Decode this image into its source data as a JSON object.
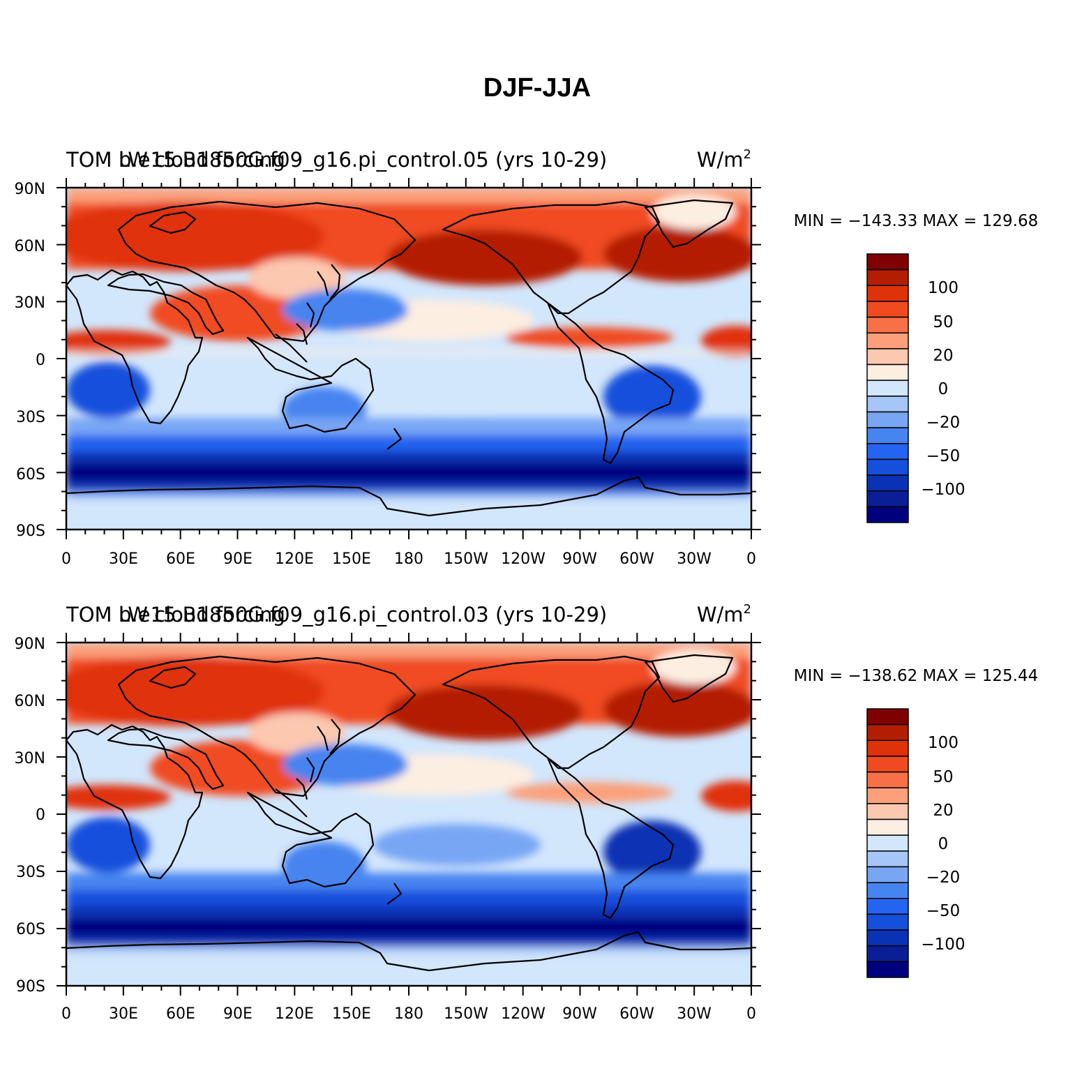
{
  "figure": {
    "title": "DJF-JJA",
    "colors": {
      "palette": [
        "#00007f",
        "#0a1e96",
        "#0a32b4",
        "#1450dc",
        "#2464f0",
        "#4684f0",
        "#78a6f5",
        "#a6c6f8",
        "#d2e6fc",
        "#fdeee2",
        "#fcc8b0",
        "#fba07a",
        "#f87048",
        "#f04b20",
        "#e03208",
        "#b41e00",
        "#7f0000"
      ]
    },
    "panels": [
      {
        "left_title": "TOM LW cloud forcing",
        "center_title": "b.e15.B1850G.f09_g16.pi_control.05 (yrs 10-29)",
        "units_base": "W/m",
        "units_exp": "2",
        "stats": "MIN = −143.33 MAX = 129.68",
        "lat_labels": [
          "90N",
          "60N",
          "30N",
          "0",
          "30S",
          "60S",
          "90S"
        ],
        "lon_labels": [
          "0",
          "30E",
          "60E",
          "90E",
          "120E",
          "150E",
          "180",
          "150W",
          "120W",
          "90W",
          "60W",
          "30W",
          "0"
        ],
        "colorbar_labels": [
          "100",
          "50",
          "20",
          "0",
          "−20",
          "−50",
          "−100"
        ]
      },
      {
        "left_title": "TOM LW cloud forcing",
        "center_title": "b.e15.B1850G.f09_g16.pi_control.03 (yrs 10-29)",
        "units_base": "W/m",
        "units_exp": "2",
        "stats": "MIN = −138.62 MAX = 125.44",
        "lat_labels": [
          "90N",
          "60N",
          "30N",
          "0",
          "30S",
          "60S",
          "90S"
        ],
        "lon_labels": [
          "0",
          "30E",
          "60E",
          "90E",
          "120E",
          "150E",
          "180",
          "150W",
          "120W",
          "90W",
          "60W",
          "30W",
          "0"
        ],
        "colorbar_labels": [
          "100",
          "50",
          "20",
          "0",
          "−20",
          "−50",
          "−100"
        ]
      }
    ]
  }
}
